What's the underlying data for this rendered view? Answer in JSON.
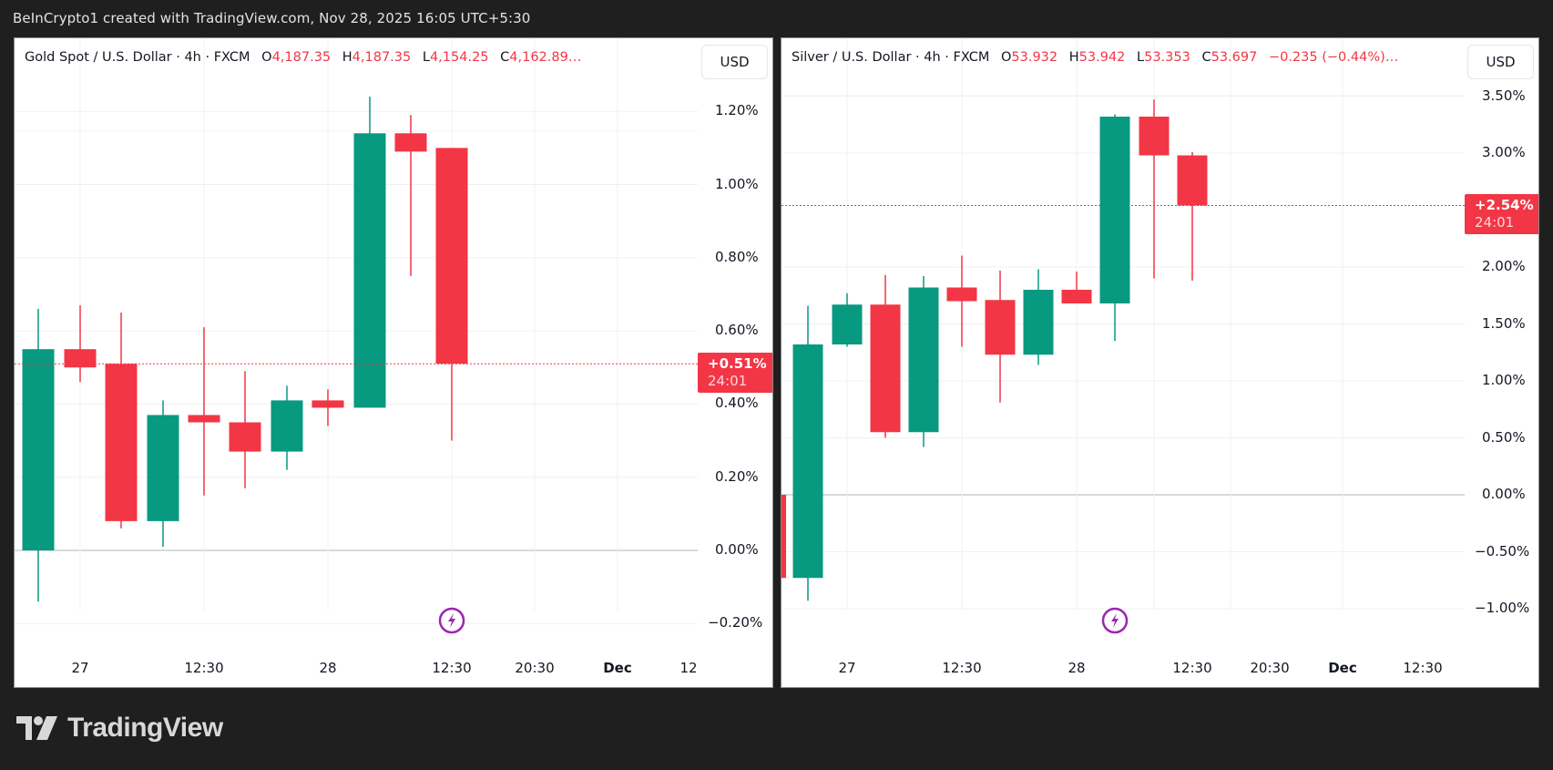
{
  "header": {
    "attribution": "BeInCrypto1 created with TradingView.com, Nov 28, 2025 16:05 UTC+5:30"
  },
  "colors": {
    "up": "#089981",
    "down": "#f23645",
    "grid": "#f0f0f0",
    "zero_line": "#b2b5be",
    "background": "#1f1f1f",
    "event_icon": "#9c27b0"
  },
  "gold": {
    "symbol": "Gold Spot / U.S. Dollar",
    "interval": "4h",
    "source": "FXCM",
    "open_label": "O",
    "open": "4,187.35",
    "high_label": "H",
    "high": "4,187.35",
    "low_label": "L",
    "low": "4,154.25",
    "close_label": "C",
    "close": "4,162.89…",
    "currency_button": "USD",
    "badge_pct": "+0.51%",
    "badge_timer": "24:01",
    "y_ticks": [
      "1.20%",
      "1.00%",
      "0.80%",
      "0.60%",
      "0.40%",
      "0.20%",
      "0.00%",
      "−0.20%"
    ],
    "x_ticks": [
      {
        "label": "27",
        "bold": false
      },
      {
        "label": "12:30",
        "bold": false
      },
      {
        "label": "28",
        "bold": false
      },
      {
        "label": "12:30",
        "bold": false
      },
      {
        "label": "20:30",
        "bold": false
      },
      {
        "label": "Dec",
        "bold": true
      },
      {
        "label": "12",
        "bold": false
      }
    ],
    "event_icon": "lightning-bolt-icon"
  },
  "silver": {
    "symbol": "Silver / U.S. Dollar",
    "interval": "4h",
    "source": "FXCM",
    "open_label": "O",
    "open": "53.932",
    "high_label": "H",
    "high": "53.942",
    "low_label": "L",
    "low": "53.353",
    "close_label": "C",
    "close": "53.697",
    "change": "−0.235 (−0.44%)…",
    "currency_button": "USD",
    "badge_pct": "+2.54%",
    "badge_timer": "24:01",
    "y_ticks": [
      "3.50%",
      "3.00%",
      "2.00%",
      "1.50%",
      "1.00%",
      "0.50%",
      "0.00%",
      "−0.50%",
      "−1.00%"
    ],
    "x_ticks": [
      {
        "label": "27",
        "bold": false
      },
      {
        "label": "12:30",
        "bold": false
      },
      {
        "label": "28",
        "bold": false
      },
      {
        "label": "12:30",
        "bold": false
      },
      {
        "label": "20:30",
        "bold": false
      },
      {
        "label": "Dec",
        "bold": true
      },
      {
        "label": "12:30",
        "bold": false
      }
    ],
    "event_icon": "lightning-bolt-icon"
  },
  "footer": {
    "brand": "TradingView"
  },
  "chart_data": [
    {
      "type": "candlestick",
      "title": "Gold Spot / U.S. Dollar · 4h · FXCM",
      "ylabel": "% change",
      "ylim": [
        -0.25,
        1.3
      ],
      "y_ticks": [
        -0.2,
        0.0,
        0.2,
        0.4,
        0.6,
        0.8,
        1.0,
        1.2
      ],
      "x_ticks": [
        "27",
        "12:30",
        "28",
        "12:30",
        "20:30",
        "Dec",
        "12"
      ],
      "grid": true,
      "last_value_pct": 0.51,
      "candles": [
        {
          "open": 0.0,
          "high": 0.66,
          "low": -0.14,
          "close": 0.55,
          "dir": "up"
        },
        {
          "open": 0.55,
          "high": 0.67,
          "low": 0.46,
          "close": 0.5,
          "dir": "down"
        },
        {
          "open": 0.51,
          "high": 0.65,
          "low": 0.06,
          "close": 0.08,
          "dir": "down"
        },
        {
          "open": 0.08,
          "high": 0.41,
          "low": 0.01,
          "close": 0.37,
          "dir": "up"
        },
        {
          "open": 0.37,
          "high": 0.61,
          "low": 0.15,
          "close": 0.35,
          "dir": "down"
        },
        {
          "open": 0.35,
          "high": 0.49,
          "low": 0.17,
          "close": 0.27,
          "dir": "down"
        },
        {
          "open": 0.27,
          "high": 0.45,
          "low": 0.22,
          "close": 0.41,
          "dir": "up"
        },
        {
          "open": 0.41,
          "high": 0.44,
          "low": 0.34,
          "close": 0.39,
          "dir": "down"
        },
        {
          "open": 0.39,
          "high": 1.24,
          "low": 0.39,
          "close": 1.14,
          "dir": "up"
        },
        {
          "open": 1.14,
          "high": 1.19,
          "low": 0.75,
          "close": 1.09,
          "dir": "down"
        },
        {
          "open": 1.1,
          "high": 1.1,
          "low": 0.3,
          "close": 0.51,
          "dir": "down"
        }
      ]
    },
    {
      "type": "candlestick",
      "title": "Silver / U.S. Dollar · 4h · FXCM",
      "ylabel": "% change",
      "ylim": [
        -1.2,
        3.7
      ],
      "y_ticks": [
        -1.0,
        -0.5,
        0.0,
        0.5,
        1.0,
        1.5,
        2.0,
        3.0,
        3.5
      ],
      "x_ticks": [
        "27",
        "12:30",
        "28",
        "12:30",
        "20:30",
        "Dec",
        "12:30"
      ],
      "grid": true,
      "last_value_pct": 2.54,
      "candles": [
        {
          "open": 0.0,
          "high": 0.0,
          "low": -0.73,
          "close": -0.73,
          "dir": "down",
          "partial": true
        },
        {
          "open": -0.73,
          "high": 1.66,
          "low": -0.93,
          "close": 1.32,
          "dir": "up"
        },
        {
          "open": 1.32,
          "high": 1.77,
          "low": 1.3,
          "close": 1.67,
          "dir": "up"
        },
        {
          "open": 1.67,
          "high": 1.93,
          "low": 0.5,
          "close": 0.55,
          "dir": "down"
        },
        {
          "open": 0.55,
          "high": 1.92,
          "low": 0.42,
          "close": 1.82,
          "dir": "up"
        },
        {
          "open": 1.82,
          "high": 2.1,
          "low": 1.3,
          "close": 1.7,
          "dir": "down"
        },
        {
          "open": 1.71,
          "high": 1.97,
          "low": 0.81,
          "close": 1.23,
          "dir": "down"
        },
        {
          "open": 1.23,
          "high": 1.98,
          "low": 1.14,
          "close": 1.8,
          "dir": "up"
        },
        {
          "open": 1.8,
          "high": 1.96,
          "low": 1.68,
          "close": 1.68,
          "dir": "down"
        },
        {
          "open": 1.68,
          "high": 3.34,
          "low": 1.35,
          "close": 3.32,
          "dir": "up"
        },
        {
          "open": 3.32,
          "high": 3.47,
          "low": 1.9,
          "close": 2.98,
          "dir": "down"
        },
        {
          "open": 2.98,
          "high": 3.01,
          "low": 1.88,
          "close": 2.54,
          "dir": "down"
        }
      ]
    }
  ]
}
